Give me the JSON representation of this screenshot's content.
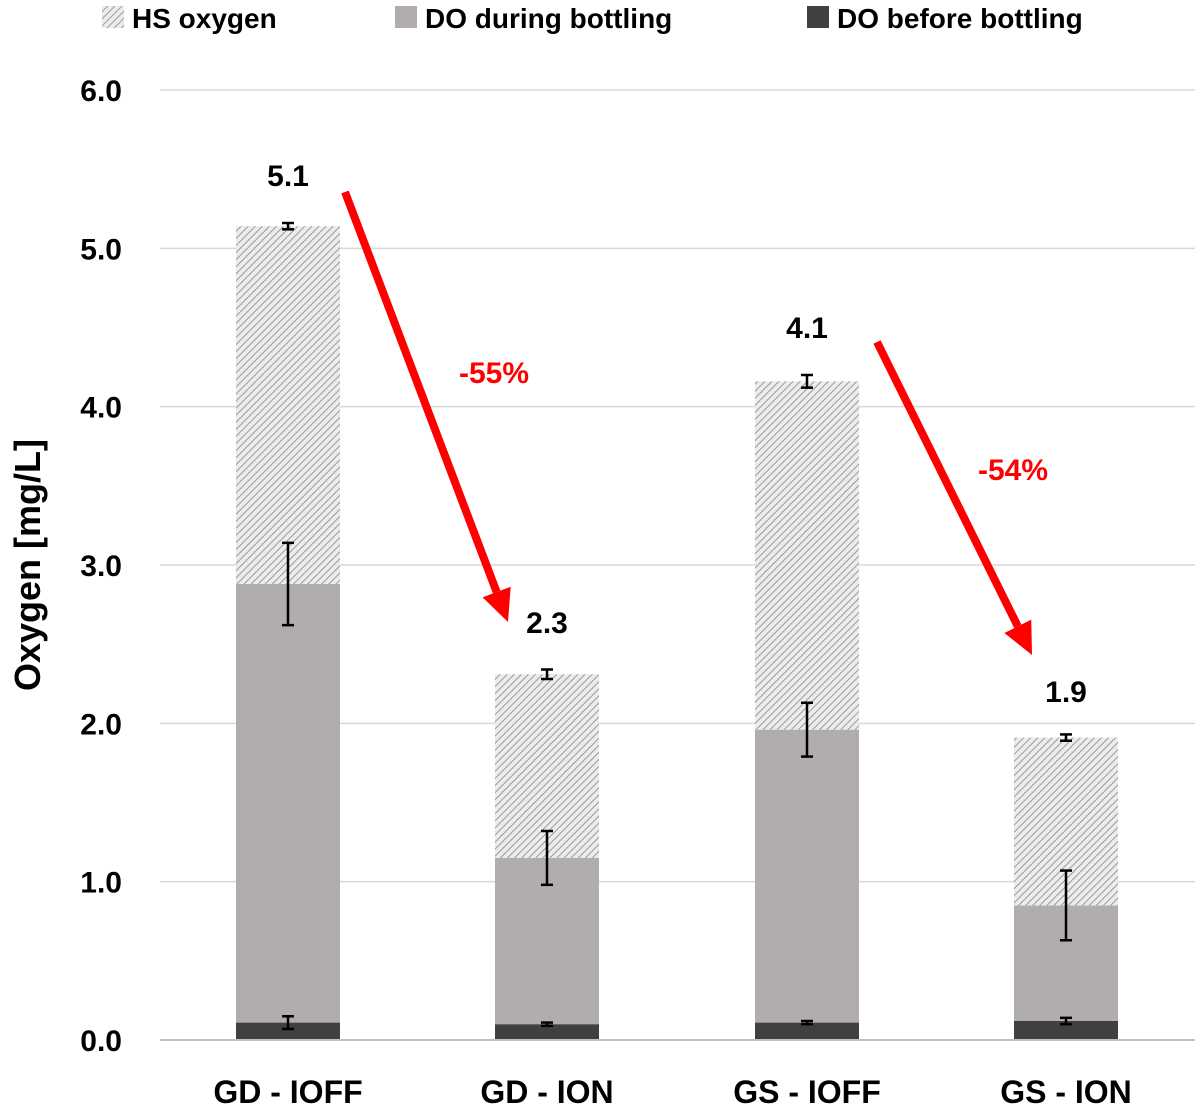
{
  "chart_data": {
    "type": "bar",
    "stacked": true,
    "categories": [
      "GD - IOFF",
      "GD - ION",
      "GS - IOFF",
      "GS - ION"
    ],
    "series": [
      {
        "name": "DO before bottling",
        "values": [
          0.11,
          0.1,
          0.11,
          0.12
        ],
        "errors": [
          0.04,
          0.01,
          0.01,
          0.02
        ],
        "color": "#404040",
        "pattern": "solid"
      },
      {
        "name": "DO during bottling",
        "values": [
          2.77,
          1.05,
          1.85,
          0.73
        ],
        "errors": [
          0.26,
          0.17,
          0.17,
          0.22
        ],
        "color": "#b1adad",
        "pattern": "solid"
      },
      {
        "name": "HS oxygen",
        "values": [
          2.26,
          1.16,
          2.2,
          1.06
        ],
        "errors": [
          0.02,
          0.03,
          0.04,
          0.02
        ],
        "color": "#b7b7b7",
        "pattern": "hatch"
      }
    ],
    "totals": [
      "5.1",
      "2.3",
      "4.1",
      "1.9"
    ],
    "legend_order": [
      "HS oxygen",
      "DO during bottling",
      "DO before bottling"
    ],
    "legend_position": "top",
    "ylabel": "Oxygen [mg/L]",
    "xlabel": "",
    "ylim": [
      0,
      6
    ],
    "yticks": [
      0,
      1,
      2,
      3,
      4,
      5,
      6
    ],
    "ytick_labels": [
      "0.0",
      "1.0",
      "2.0",
      "3.0",
      "4.0",
      "5.0",
      "6.0"
    ],
    "grid": true,
    "annotations": [
      {
        "text": "-55%",
        "from": "GD - IOFF",
        "to": "GD - ION",
        "color": "#ff0000"
      },
      {
        "text": "-54%",
        "from": "GS - IOFF",
        "to": "GS - ION",
        "color": "#ff0000"
      }
    ]
  }
}
